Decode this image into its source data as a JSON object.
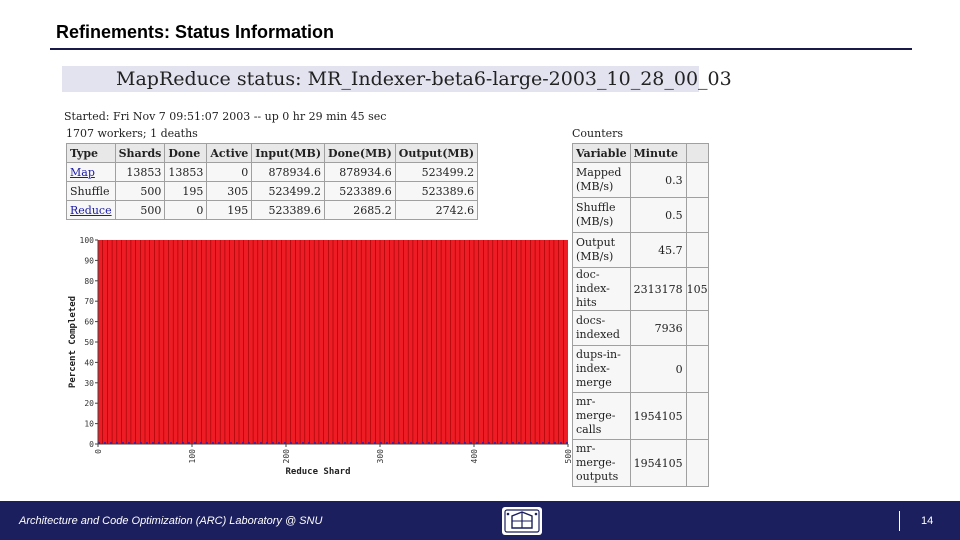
{
  "slide": {
    "title": "Refinements: Status Information"
  },
  "status_page": {
    "heading": "MapReduce status: MR_Indexer-beta6-large-2003_10_28_00_03",
    "started_line": "Started: Fri Nov 7 09:51:07 2003 -- up 0 hr 29 min 45 sec",
    "workers_line": "1707 workers; 1 deaths",
    "phase_table": {
      "headers": [
        "Type",
        "Shards",
        "Done",
        "Active",
        "Input(MB)",
        "Done(MB)",
        "Output(MB)"
      ],
      "rows": [
        {
          "type": "Map",
          "shards": "13853",
          "done": "13853",
          "active": "0",
          "input": "878934.6",
          "done_mb": "878934.6",
          "output": "523499.2"
        },
        {
          "type": "Shuffle",
          "shards": "500",
          "done": "195",
          "active": "305",
          "input": "523499.2",
          "done_mb": "523389.6",
          "output": "523389.6"
        },
        {
          "type": "Reduce",
          "shards": "500",
          "done": "0",
          "active": "195",
          "input": "523389.6",
          "done_mb": "2685.2",
          "output": "2742.6"
        }
      ]
    },
    "counters": {
      "title": "Counters",
      "headers": [
        "Variable",
        "Minute"
      ],
      "rows": [
        {
          "variable": "Mapped (MB/s)",
          "minute": "0.3"
        },
        {
          "variable": "Shuffle (MB/s)",
          "minute": "0.5"
        },
        {
          "variable": "Output (MB/s)",
          "minute": "45.7"
        },
        {
          "variable": "doc-index-hits",
          "minute": "2313178",
          "extra": "105"
        },
        {
          "variable": "docs-indexed",
          "minute": "7936"
        },
        {
          "variable": "dups-in-index-merge",
          "minute": "0"
        },
        {
          "variable": "mr-merge-calls",
          "minute": "1954105"
        },
        {
          "variable": "mr-merge-outputs",
          "minute": "1954105"
        }
      ]
    }
  },
  "chart_data": {
    "type": "bar",
    "xlabel": "Reduce Shard",
    "ylabel": "Percent Completed",
    "x_ticks": [
      0,
      100,
      200,
      300,
      400,
      500
    ],
    "y_ticks": [
      0,
      10,
      20,
      30,
      40,
      50,
      60,
      70,
      80,
      90,
      100
    ],
    "xlim": [
      0,
      500
    ],
    "ylim": [
      0,
      100
    ],
    "series": [
      {
        "values_all_shards": 100,
        "color": "#ee1c24"
      }
    ],
    "colors": {
      "bar": "#ee1c24",
      "bar_edge": "#9a0000",
      "baseline": "#2020c0"
    }
  },
  "footer": {
    "text": "Architecture and Code Optimization (ARC) Laboratory @ SNU",
    "logo_icon": "university-seal-icon",
    "page_number": "14",
    "color": "#1c1f5e"
  }
}
